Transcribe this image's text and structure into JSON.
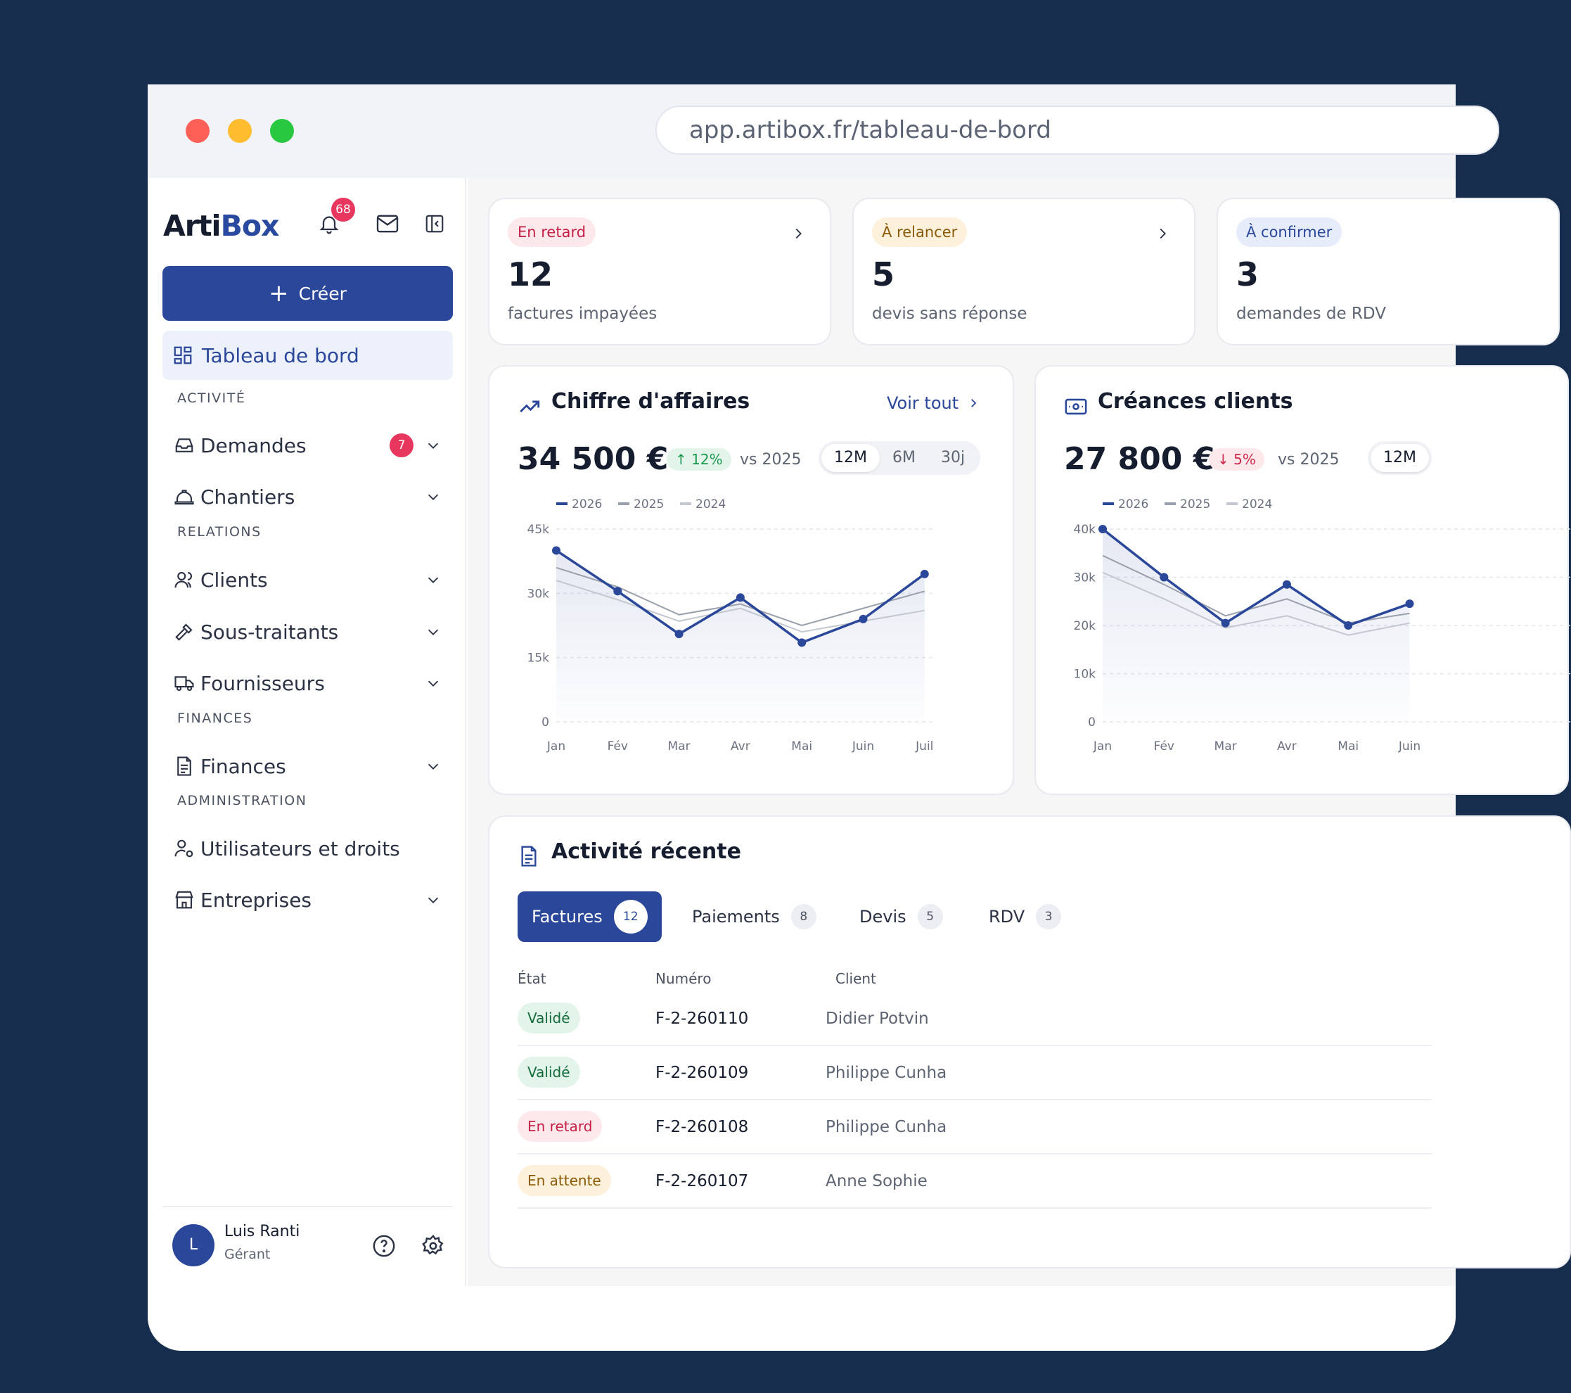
{
  "browser": {
    "url": "app.artibox.fr/tableau-de-bord"
  },
  "colors": {
    "brand": "#2a479a",
    "danger": "#e8375f",
    "success": "#1b9a50",
    "background": "#162d4d"
  },
  "sidebar": {
    "logo_a": "Arti",
    "logo_b": "Box",
    "notifications_count": "68",
    "create_label": "Créer",
    "active_item": "Tableau de bord",
    "sections": {
      "activity": "ACTIVITÉ",
      "relations": "RELATIONS",
      "finances": "FINANCES",
      "admin": "ADMINISTRATION"
    },
    "items": {
      "demandes": "Demandes",
      "demandes_badge": "7",
      "chantiers": "Chantiers",
      "clients": "Clients",
      "sous_traitants": "Sous-traitants",
      "fournisseurs": "Fournisseurs",
      "finances": "Finances",
      "utilisateurs": "Utilisateurs et droits",
      "entreprises": "Entreprises"
    },
    "user": {
      "initial": "L",
      "name": "Luis Ranti",
      "role": "Gérant"
    }
  },
  "alerts": [
    {
      "tag": "En retard",
      "count": "12",
      "label": "factures impayées"
    },
    {
      "tag": "À relancer",
      "count": "5",
      "label": "devis sans réponse"
    },
    {
      "tag": "À confirmer",
      "count": "3",
      "label": "demandes de RDV"
    }
  ],
  "revenue": {
    "title": "Chiffre d'affaires",
    "see_all": "Voir tout",
    "value": "34 500 €",
    "delta": "12%",
    "vs": "vs 2025",
    "ranges": [
      "12M",
      "6M",
      "30j"
    ],
    "selected_range": "12M"
  },
  "receivables": {
    "title": "Créances clients",
    "value": "27 800 €",
    "delta": "5%",
    "vs": "vs 2025",
    "selected_range": "12M"
  },
  "chart_data": [
    {
      "type": "line",
      "x": [
        "Jan",
        "Fév",
        "Mar",
        "Avr",
        "Mai",
        "Juin",
        "Juil"
      ],
      "ylim": [
        0,
        45000
      ],
      "yticks": [
        "0",
        "15k",
        "30k",
        "45k"
      ],
      "grid": true,
      "legend": "top-left",
      "series": [
        {
          "name": "2026",
          "values": [
            40000,
            30500,
            20500,
            29000,
            18500,
            24000,
            34500
          ]
        },
        {
          "name": "2025",
          "values": [
            36000,
            31500,
            25000,
            27500,
            22500,
            26500,
            30500
          ]
        },
        {
          "name": "2024",
          "values": [
            33000,
            28500,
            23500,
            26500,
            21000,
            23500,
            26000
          ]
        }
      ]
    },
    {
      "type": "line",
      "x": [
        "Jan",
        "Fév",
        "Mar",
        "Avr",
        "Mai",
        "Juin"
      ],
      "ylim": [
        0,
        40000
      ],
      "yticks": [
        "0",
        "10k",
        "20k",
        "30k",
        "40k"
      ],
      "grid": true,
      "legend": "top-left",
      "series": [
        {
          "name": "2026",
          "values": [
            40000,
            30000,
            20500,
            28500,
            20000,
            24500
          ]
        },
        {
          "name": "2025",
          "values": [
            34500,
            28500,
            22000,
            25500,
            20500,
            22500
          ]
        },
        {
          "name": "2024",
          "values": [
            31000,
            25500,
            19500,
            22000,
            18000,
            20500
          ]
        }
      ]
    }
  ],
  "activity": {
    "title": "Activité récente",
    "tabs": [
      {
        "label": "Factures",
        "count": "12"
      },
      {
        "label": "Paiements",
        "count": "8"
      },
      {
        "label": "Devis",
        "count": "5"
      },
      {
        "label": "RDV",
        "count": "3"
      }
    ],
    "headers": {
      "state": "État",
      "number": "Numéro",
      "client": "Client"
    },
    "rows": [
      {
        "state": "Validé",
        "number": "F-2-260110",
        "client": "Didier Potvin"
      },
      {
        "state": "Validé",
        "number": "F-2-260109",
        "client": "Philippe Cunha"
      },
      {
        "state": "En retard",
        "number": "F-2-260108",
        "client": "Philippe Cunha"
      },
      {
        "state": "En attente",
        "number": "F-2-260107",
        "client": "Anne Sophie"
      }
    ]
  }
}
